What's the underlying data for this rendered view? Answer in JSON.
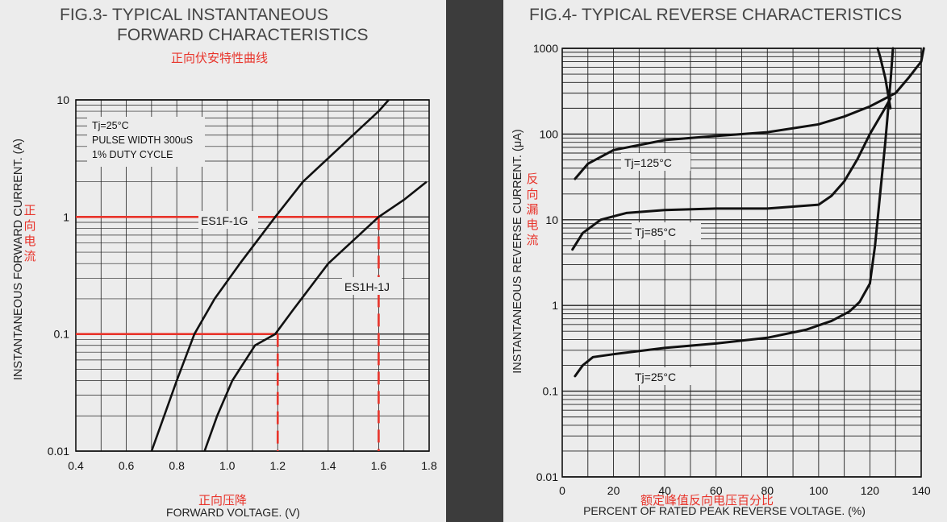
{
  "chart_data": [
    {
      "type": "line",
      "title_line1": "FIG.3- TYPICAL INSTANTANEOUS",
      "title_line2": "FORWARD CHARACTERISTICS",
      "subtitle_cn": "正向伏安特性曲线",
      "xlabel": "FORWARD VOLTAGE. (V)",
      "xlabel_cn": "正向压降",
      "ylabel": "INSTANTANEOUS FORWARD CURRENT. (A)",
      "ylabel_cn": "正向电流",
      "xlim": [
        0.4,
        1.8
      ],
      "ylim": [
        0.01,
        10
      ],
      "yscale": "log",
      "grid": true,
      "xticks": [
        "0.4",
        "0.6",
        "0.8",
        "1.0",
        "1.2",
        "1.4",
        "1.6",
        "1.8"
      ],
      "yticks": [
        "0.01",
        "0.1",
        "1",
        "10"
      ],
      "conditions": [
        "Tj=25°C",
        "PULSE WIDTH 300uS",
        "1% DUTY CYCLE"
      ],
      "series": [
        {
          "name": "ES1F-1G",
          "x": [
            0.7,
            0.75,
            0.8,
            0.87,
            0.95,
            1.05,
            1.19,
            1.3,
            1.45,
            1.6,
            1.64
          ],
          "y": [
            0.01,
            0.02,
            0.04,
            0.1,
            0.2,
            0.4,
            1.0,
            2.0,
            4.0,
            8.0,
            10.0
          ]
        },
        {
          "name": "ES1H-1J",
          "x": [
            0.91,
            0.96,
            1.02,
            1.11,
            1.19,
            1.26,
            1.4,
            1.6,
            1.7,
            1.79
          ],
          "y": [
            0.01,
            0.02,
            0.04,
            0.08,
            0.1,
            0.16,
            0.4,
            1.0,
            1.4,
            2.0
          ]
        }
      ],
      "annotations": {
        "h_1A": {
          "x": [
            0.4,
            1.6
          ],
          "y": 1
        },
        "h_01A": {
          "x": [
            0.4,
            1.2
          ],
          "y": 0.1
        },
        "v_12V": {
          "x": 1.2,
          "y": [
            0.01,
            0.1
          ]
        },
        "v_16V": {
          "x": 1.6,
          "y": [
            0.01,
            1
          ]
        }
      }
    },
    {
      "type": "line",
      "title": "FIG.4- TYPICAL REVERSE CHARACTERISTICS",
      "xlabel": "PERCENT OF RATED PEAK REVERSE VOLTAGE. (%)",
      "xlabel_cn": "额定峰值反向电压百分比",
      "ylabel": "INSTANTANEOUS REVERSE CURRENT. (μA)",
      "ylabel_cn": "反向漏电流",
      "xlim": [
        0,
        140
      ],
      "ylim": [
        0.01,
        1000
      ],
      "yscale": "log",
      "grid": true,
      "xticks": [
        "0",
        "20",
        "40",
        "60",
        "80",
        "100",
        "120",
        "140"
      ],
      "yticks": [
        "0.01",
        "0.1",
        "1",
        "10",
        "100",
        "1000"
      ],
      "series": [
        {
          "name": "Tj=125°C",
          "x": [
            5,
            10,
            20,
            40,
            60,
            80,
            100,
            110,
            120,
            130,
            135,
            140,
            141
          ],
          "y": [
            30,
            45,
            65,
            85,
            95,
            105,
            130,
            160,
            210,
            300,
            450,
            700,
            1000
          ]
        },
        {
          "name": "Tj=85°C",
          "x": [
            4,
            8,
            15,
            25,
            40,
            60,
            80,
            100,
            105,
            110,
            115,
            120,
            125,
            128
          ],
          "y": [
            4.5,
            7,
            10,
            12,
            13,
            13.5,
            13.5,
            15,
            19,
            28,
            50,
            100,
            180,
            260
          ]
        },
        {
          "name": "Tj=25°C",
          "x": [
            5,
            8,
            12,
            20,
            40,
            60,
            80,
            95,
            105,
            112,
            116,
            120,
            122,
            124,
            126,
            128,
            129
          ],
          "y": [
            0.15,
            0.2,
            0.25,
            0.27,
            0.32,
            0.36,
            0.42,
            0.52,
            0.66,
            0.85,
            1.1,
            1.8,
            5,
            20,
            80,
            400,
            1000
          ]
        },
        {
          "name": "",
          "x": [
            128,
            127,
            126,
            125,
            124,
            123
          ],
          "y": [
            200,
            300,
            450,
            600,
            800,
            1000
          ]
        }
      ]
    }
  ]
}
